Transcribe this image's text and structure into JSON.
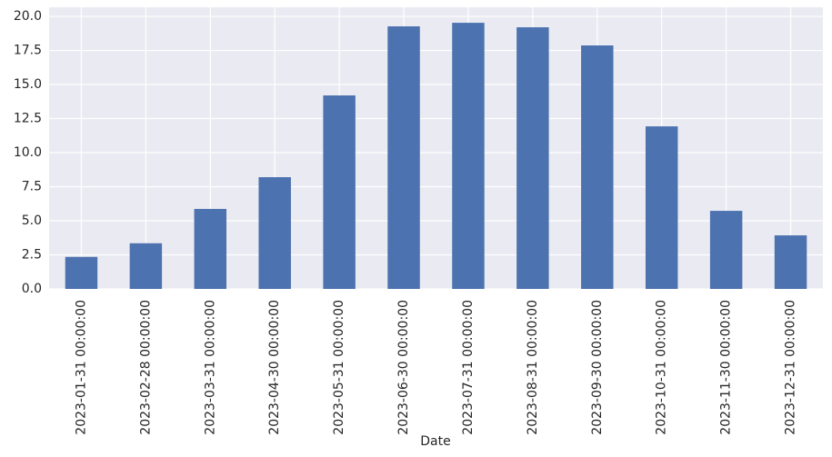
{
  "chart_data": {
    "type": "bar",
    "xlabel": "Date",
    "categories": [
      "2023-01-31 00:00:00",
      "2023-02-28 00:00:00",
      "2023-03-31 00:00:00",
      "2023-04-30 00:00:00",
      "2023-05-31 00:00:00",
      "2023-06-30 00:00:00",
      "2023-07-31 00:00:00",
      "2023-08-31 00:00:00",
      "2023-09-30 00:00:00",
      "2023-10-31 00:00:00",
      "2023-11-30 00:00:00",
      "2023-12-31 00:00:00"
    ],
    "values": [
      2.35,
      3.35,
      5.87,
      8.2,
      14.2,
      19.27,
      19.53,
      19.2,
      17.87,
      11.93,
      5.73,
      3.93
    ],
    "color": "#4c72b0",
    "ylim": [
      0,
      20.67
    ],
    "yticks": [
      {
        "value": 0,
        "label": "0.0"
      },
      {
        "value": 2.5,
        "label": "2.5"
      },
      {
        "value": 5,
        "label": "5.0"
      },
      {
        "value": 7.5,
        "label": "7.5"
      },
      {
        "value": 10,
        "label": "10.0"
      },
      {
        "value": 12.5,
        "label": "12.5"
      },
      {
        "value": 15,
        "label": "15.0"
      },
      {
        "value": 17.5,
        "label": "17.5"
      },
      {
        "value": 20,
        "label": "20.0"
      }
    ],
    "grid": true
  }
}
